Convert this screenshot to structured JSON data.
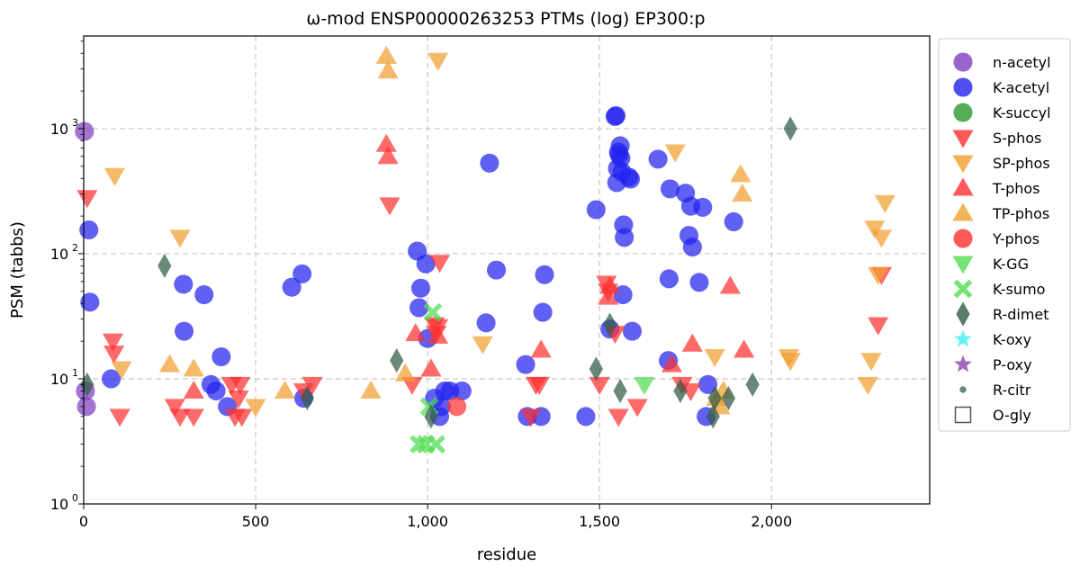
{
  "chart_data": {
    "type": "scatter",
    "title": "ω-mod ENSP00000263253 PTMs (log) EP300:p",
    "xlabel": "residue",
    "ylabel": "PSM (tabbs)",
    "xlim": [
      0,
      2460
    ],
    "ylim": [
      1,
      5500
    ],
    "y_scale": "log",
    "grid": true,
    "legend_position": "outside-right",
    "x_ticks": [
      0,
      500,
      1000,
      1500,
      2000
    ],
    "x_tick_labels": [
      "0",
      "500",
      "1,000",
      "1,500",
      "2,000"
    ],
    "y_ticks": [
      1,
      10,
      100,
      1000
    ],
    "y_tick_labels": [
      "10",
      "10",
      "10",
      "10"
    ],
    "y_tick_exponents": [
      "0",
      "1",
      "2",
      "3"
    ],
    "series": [
      {
        "name": "n-acetyl",
        "marker": "circle",
        "color": "#7f3fbf",
        "points": [
          [
            2,
            950
          ],
          [
            5,
            8
          ],
          [
            8,
            6
          ]
        ]
      },
      {
        "name": "K-acetyl",
        "marker": "circle",
        "color": "#2222ee",
        "points": [
          [
            15,
            155
          ],
          [
            18,
            41
          ],
          [
            80,
            10
          ],
          [
            290,
            57
          ],
          [
            292,
            24
          ],
          [
            350,
            47
          ],
          [
            370,
            9
          ],
          [
            385,
            8
          ],
          [
            400,
            15
          ],
          [
            418,
            6
          ],
          [
            605,
            54
          ],
          [
            635,
            69
          ],
          [
            640,
            7
          ],
          [
            970,
            105
          ],
          [
            975,
            37
          ],
          [
            980,
            53
          ],
          [
            995,
            83
          ],
          [
            1000,
            21
          ],
          [
            1020,
            7
          ],
          [
            1035,
            5
          ],
          [
            1040,
            6
          ],
          [
            1050,
            8
          ],
          [
            1065,
            8
          ],
          [
            1100,
            8
          ],
          [
            1170,
            28
          ],
          [
            1180,
            530
          ],
          [
            1200,
            74
          ],
          [
            1285,
            13
          ],
          [
            1290,
            5
          ],
          [
            1330,
            5
          ],
          [
            1335,
            34
          ],
          [
            1340,
            68
          ],
          [
            1460,
            5
          ],
          [
            1490,
            225
          ],
          [
            1530,
            25
          ],
          [
            1545,
            1250
          ],
          [
            1548,
            1270
          ],
          [
            1550,
            370
          ],
          [
            1552,
            480
          ],
          [
            1555,
            650
          ],
          [
            1557,
            620
          ],
          [
            1560,
            730
          ],
          [
            1562,
            580
          ],
          [
            1565,
            450
          ],
          [
            1568,
            47
          ],
          [
            1570,
            170
          ],
          [
            1572,
            135
          ],
          [
            1585,
            410
          ],
          [
            1590,
            395
          ],
          [
            1595,
            24
          ],
          [
            1670,
            570
          ],
          [
            1700,
            14
          ],
          [
            1702,
            63
          ],
          [
            1705,
            330
          ],
          [
            1750,
            305
          ],
          [
            1760,
            140
          ],
          [
            1765,
            240
          ],
          [
            1770,
            113
          ],
          [
            1790,
            59
          ],
          [
            1800,
            235
          ],
          [
            1810,
            5
          ],
          [
            1815,
            9
          ],
          [
            1890,
            180
          ]
        ]
      },
      {
        "name": "K-succyl",
        "marker": "circle",
        "color": "#2a9a2a",
        "points": []
      },
      {
        "name": "S-phos",
        "marker": "triangle-down",
        "color": "#ff3030",
        "points": [
          [
            10,
            280
          ],
          [
            85,
            20
          ],
          [
            88,
            16
          ],
          [
            105,
            5
          ],
          [
            265,
            6
          ],
          [
            280,
            5
          ],
          [
            320,
            5
          ],
          [
            430,
            9
          ],
          [
            440,
            5
          ],
          [
            450,
            7
          ],
          [
            455,
            9
          ],
          [
            460,
            5
          ],
          [
            640,
            8
          ],
          [
            665,
            9
          ],
          [
            890,
            245
          ],
          [
            955,
            9
          ],
          [
            1020,
            27
          ],
          [
            1025,
            23
          ],
          [
            1030,
            26
          ],
          [
            1035,
            85
          ],
          [
            1300,
            5
          ],
          [
            1315,
            9
          ],
          [
            1325,
            9
          ],
          [
            1500,
            9
          ],
          [
            1520,
            58
          ],
          [
            1525,
            50
          ],
          [
            1545,
            23
          ],
          [
            1555,
            5
          ],
          [
            1610,
            6
          ],
          [
            1740,
            9
          ],
          [
            1765,
            8
          ],
          [
            2310,
            27
          ],
          [
            2320,
            68
          ]
        ]
      },
      {
        "name": "SP-phos",
        "marker": "triangle-down",
        "color": "#f0a030",
        "points": [
          [
            90,
            420
          ],
          [
            110,
            12
          ],
          [
            280,
            135
          ],
          [
            500,
            6
          ],
          [
            1030,
            3500
          ],
          [
            1160,
            19
          ],
          [
            1720,
            650
          ],
          [
            1835,
            15
          ],
          [
            2050,
            15
          ],
          [
            2055,
            14
          ],
          [
            2280,
            9
          ],
          [
            2290,
            14
          ],
          [
            2300,
            160
          ],
          [
            2310,
            68
          ],
          [
            2320,
            135
          ],
          [
            2330,
            255
          ]
        ]
      },
      {
        "name": "T-phos",
        "marker": "triangle-up",
        "color": "#ff3030",
        "points": [
          [
            320,
            8
          ],
          [
            880,
            750
          ],
          [
            885,
            600
          ],
          [
            965,
            23
          ],
          [
            1010,
            12
          ],
          [
            1030,
            22
          ],
          [
            1330,
            17
          ],
          [
            1525,
            45
          ],
          [
            1530,
            55
          ],
          [
            1710,
            13
          ],
          [
            1770,
            19
          ],
          [
            1880,
            55
          ],
          [
            1920,
            17
          ]
        ]
      },
      {
        "name": "TP-phos",
        "marker": "triangle-up",
        "color": "#f0a030",
        "points": [
          [
            250,
            13
          ],
          [
            320,
            12
          ],
          [
            585,
            8
          ],
          [
            835,
            8
          ],
          [
            880,
            3800
          ],
          [
            885,
            2900
          ],
          [
            935,
            11
          ],
          [
            1840,
            7
          ],
          [
            1850,
            6
          ],
          [
            1860,
            8
          ],
          [
            1910,
            430
          ],
          [
            1915,
            300
          ]
        ]
      },
      {
        "name": "Y-phos",
        "marker": "circle",
        "color": "#ff3030",
        "points": [
          [
            1085,
            6
          ]
        ]
      },
      {
        "name": "K-GG",
        "marker": "triangle-down",
        "color": "#50dd50",
        "points": [
          [
            1630,
            9
          ]
        ]
      },
      {
        "name": "K-sumo",
        "marker": "x",
        "color": "#50dd50",
        "points": [
          [
            975,
            3
          ],
          [
            995,
            3
          ],
          [
            1005,
            6
          ],
          [
            1015,
            34
          ],
          [
            1025,
            3
          ]
        ]
      },
      {
        "name": "R-dimet",
        "marker": "diamond",
        "color": "#2e5a46",
        "points": [
          [
            10,
            9
          ],
          [
            235,
            80
          ],
          [
            650,
            7
          ],
          [
            910,
            14
          ],
          [
            1010,
            5
          ],
          [
            1490,
            12
          ],
          [
            1530,
            27
          ],
          [
            1560,
            8
          ],
          [
            1735,
            8
          ],
          [
            1830,
            5
          ],
          [
            1835,
            7
          ],
          [
            1875,
            7
          ],
          [
            1945,
            9
          ],
          [
            2055,
            1000
          ]
        ]
      },
      {
        "name": "K-oxy",
        "marker": "star",
        "color": "#40f0f0",
        "points": []
      },
      {
        "name": "P-oxy",
        "marker": "star",
        "color": "#8e44ad",
        "points": []
      },
      {
        "name": "R-citr",
        "marker": "dot",
        "color": "#3e6e5e",
        "points": []
      },
      {
        "name": "O-gly",
        "marker": "square-open",
        "color": "#555555",
        "points": []
      }
    ]
  }
}
